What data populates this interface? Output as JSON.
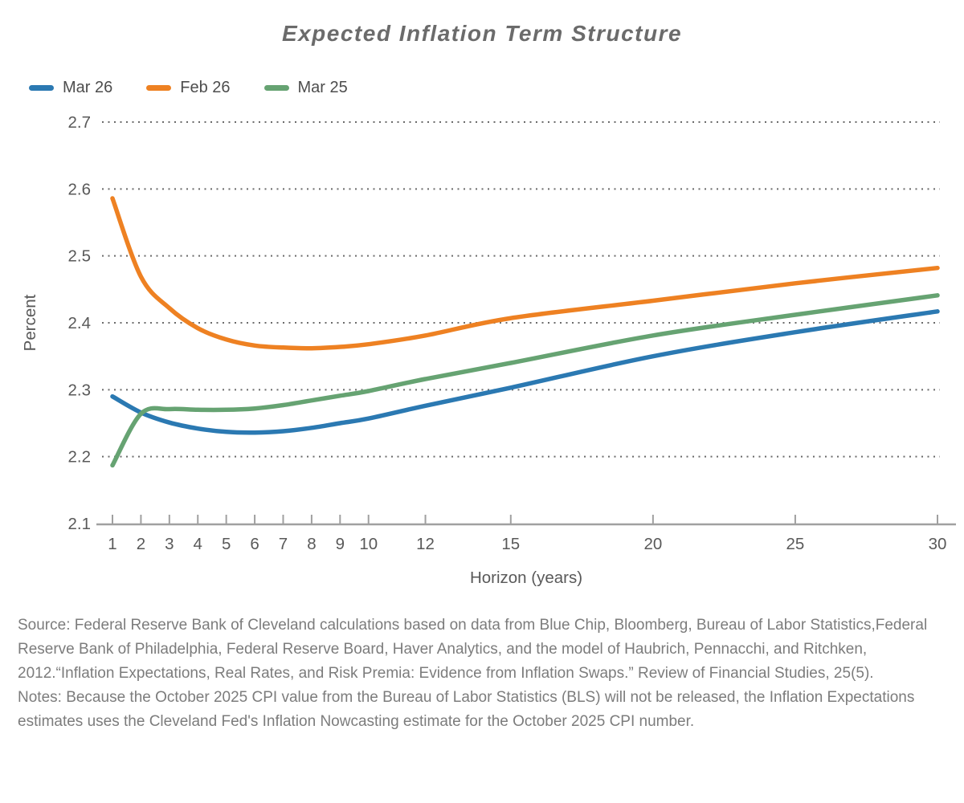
{
  "title": "Expected Inflation Term Structure",
  "chart_data": {
    "type": "line",
    "title": "Expected Inflation Term Structure",
    "xlabel": "Horizon (years)",
    "ylabel": "Percent",
    "x": [
      1,
      2,
      3,
      4,
      5,
      6,
      7,
      8,
      9,
      10,
      12,
      15,
      20,
      25,
      30
    ],
    "x_tick_labels": [
      "1",
      "2",
      "3",
      "4",
      "5",
      "6",
      "7",
      "8",
      "9",
      "10",
      "12",
      "15",
      "20",
      "25",
      "30"
    ],
    "y_ticks": [
      2.1,
      2.2,
      2.3,
      2.4,
      2.5,
      2.6,
      2.7
    ],
    "xlim": [
      1,
      30
    ],
    "ylim": [
      2.1,
      2.7
    ],
    "grid": "horizontal dotted lines at each y tick except 2.1",
    "legend_position": "top-left",
    "series": [
      {
        "name": "Mar 26",
        "color": "#2b79b2",
        "values": [
          2.29,
          2.266,
          2.251,
          2.242,
          2.237,
          2.236,
          2.238,
          2.243,
          2.25,
          2.257,
          2.276,
          2.303,
          2.35,
          2.386,
          2.417
        ]
      },
      {
        "name": "Feb 26",
        "color": "#ee8122",
        "values": [
          2.586,
          2.469,
          2.422,
          2.392,
          2.375,
          2.366,
          2.363,
          2.362,
          2.364,
          2.368,
          2.381,
          2.407,
          2.433,
          2.459,
          2.482
        ]
      },
      {
        "name": "Mar 25",
        "color": "#66a372",
        "values": [
          2.187,
          2.264,
          2.271,
          2.27,
          2.27,
          2.272,
          2.277,
          2.284,
          2.291,
          2.298,
          2.316,
          2.34,
          2.381,
          2.412,
          2.441
        ]
      }
    ]
  },
  "footer": {
    "source": "Source: Federal Reserve Bank of Cleveland calculations based on data from Blue Chip, Bloomberg, Bureau of Labor Statistics,Federal Reserve Bank of Philadelphia, Federal Reserve Board, Haver Analytics, and the model of Haubrich, Pennacchi, and Ritchken, 2012.“Inflation Expectations, Real Rates, and Risk Premia: Evidence from Inflation Swaps.” Review of Financial Studies, 25(5).",
    "notes": "Notes: Because the October 2025 CPI value from the Bureau of Labor Statistics (BLS) will not be released, the Inflation Expectations estimates uses the Cleveland Fed's Inflation Nowcasting estimate for the October 2025 CPI number."
  },
  "colors": {
    "title_text": "#6b6b6b",
    "axis_line": "#a0a0a0",
    "tick_label_text": "#595959",
    "grid_dots": "#6b6b6b",
    "footer_text": "#7c7c7c",
    "series_blue": "#2b79b2",
    "series_orange": "#ee8122",
    "series_green": "#66a372"
  }
}
